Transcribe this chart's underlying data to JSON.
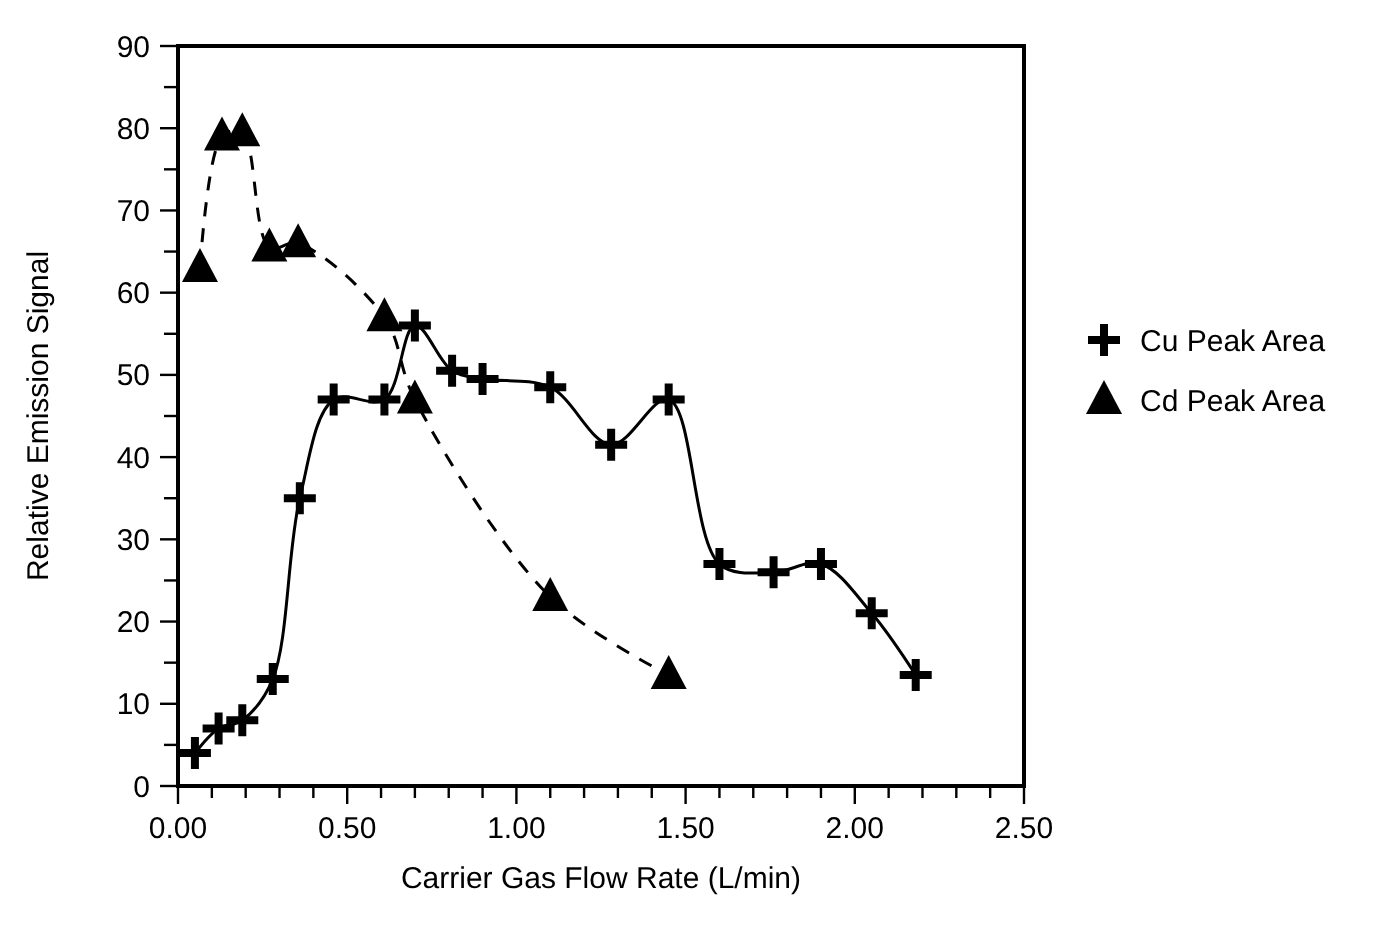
{
  "chart_data": {
    "type": "line",
    "xlabel": "Carrier Gas Flow Rate (L/min)",
    "ylabel": "Relative Emission Signal",
    "xlim": [
      0,
      2.5
    ],
    "ylim": [
      0,
      90
    ],
    "xticks": [
      {
        "value": 0,
        "label": "0.00"
      },
      {
        "value": 0.1,
        "label": null
      },
      {
        "value": 0.2,
        "label": null
      },
      {
        "value": 0.3,
        "label": null
      },
      {
        "value": 0.4,
        "label": null
      },
      {
        "value": 0.5,
        "label": "0.50"
      },
      {
        "value": 0.6,
        "label": null
      },
      {
        "value": 0.7,
        "label": null
      },
      {
        "value": 0.8,
        "label": null
      },
      {
        "value": 0.9,
        "label": null
      },
      {
        "value": 1,
        "label": "1.00"
      },
      {
        "value": 1.1,
        "label": null
      },
      {
        "value": 1.2,
        "label": null
      },
      {
        "value": 1.3,
        "label": null
      },
      {
        "value": 1.4,
        "label": null
      },
      {
        "value": 1.5,
        "label": "1.50"
      },
      {
        "value": 1.6,
        "label": null
      },
      {
        "value": 1.7,
        "label": null
      },
      {
        "value": 1.8,
        "label": null
      },
      {
        "value": 1.9,
        "label": null
      },
      {
        "value": 2,
        "label": "2.00"
      },
      {
        "value": 2.1,
        "label": null
      },
      {
        "value": 2.2,
        "label": null
      },
      {
        "value": 2.3,
        "label": null
      },
      {
        "value": 2.4,
        "label": null
      },
      {
        "value": 2.5,
        "label": "2.50"
      }
    ],
    "yticks": [
      0,
      {
        "value": 5,
        "label": null
      },
      10,
      {
        "value": 15,
        "label": null
      },
      20,
      {
        "value": 25,
        "label": null
      },
      30,
      {
        "value": 35,
        "label": null
      },
      40,
      {
        "value": 45,
        "label": null
      },
      50,
      {
        "value": 55,
        "label": null
      },
      60,
      {
        "value": 65,
        "label": null
      },
      70,
      {
        "value": 75,
        "label": null
      },
      80,
      {
        "value": 85,
        "label": null
      },
      90
    ],
    "grid": false,
    "legend": "right",
    "series": [
      {
        "name": "Cu Peak Area",
        "color": "#000000",
        "marker": "cross",
        "line_style": "solid",
        "x": [
          0.05,
          0.12,
          0.19,
          0.28,
          0.36,
          0.46,
          0.61,
          0.7,
          0.81,
          0.9,
          1.1,
          1.28,
          1.45,
          1.6,
          1.76,
          1.9,
          2.05,
          2.18
        ],
        "values": [
          4,
          7,
          8,
          13,
          35,
          47,
          47,
          56,
          50.5,
          49.5,
          48.5,
          41.5,
          47,
          27,
          26,
          27,
          21,
          13.5
        ]
      },
      {
        "name": "Cd Peak Area",
        "color": "#000000",
        "marker": "triangle",
        "line_style": "dashed",
        "x": [
          0.065,
          0.13,
          0.19,
          0.27,
          0.355,
          0.61,
          0.7,
          1.1,
          1.45
        ],
        "values": [
          63,
          79,
          79.5,
          65.5,
          66,
          57,
          47,
          23,
          13.5
        ]
      }
    ]
  }
}
